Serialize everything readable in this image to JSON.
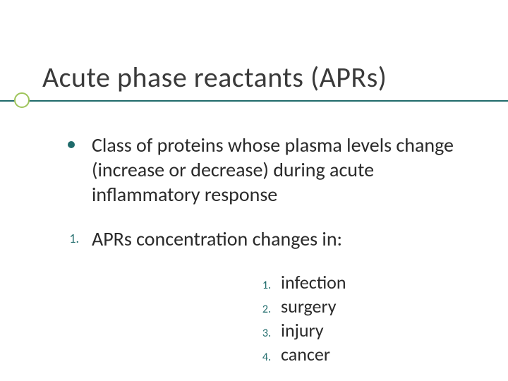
{
  "title": "Acute phase reactants (APRs)",
  "bullet_text": "Class of proteins whose plasma levels change (increase or decrease) during acute inflammatory response",
  "numbered_marker": "1.",
  "numbered_text": "APRs concentration changes in:",
  "sublist": [
    {
      "num": "1.",
      "text": "infection"
    },
    {
      "num": "2.",
      "text": "surgery"
    },
    {
      "num": "3.",
      "text": "injury"
    },
    {
      "num": "4.",
      "text": "cancer"
    }
  ],
  "colors": {
    "accent": "#1f6b6b",
    "circle": "#9ec45a",
    "text": "#2a2a2a",
    "title": "#3a3a3a",
    "background": "#ffffff"
  },
  "fonts": {
    "title_size": 40,
    "body_size": 28,
    "sub_size": 26,
    "subnum_size": 16,
    "nummarker_size": 18
  }
}
